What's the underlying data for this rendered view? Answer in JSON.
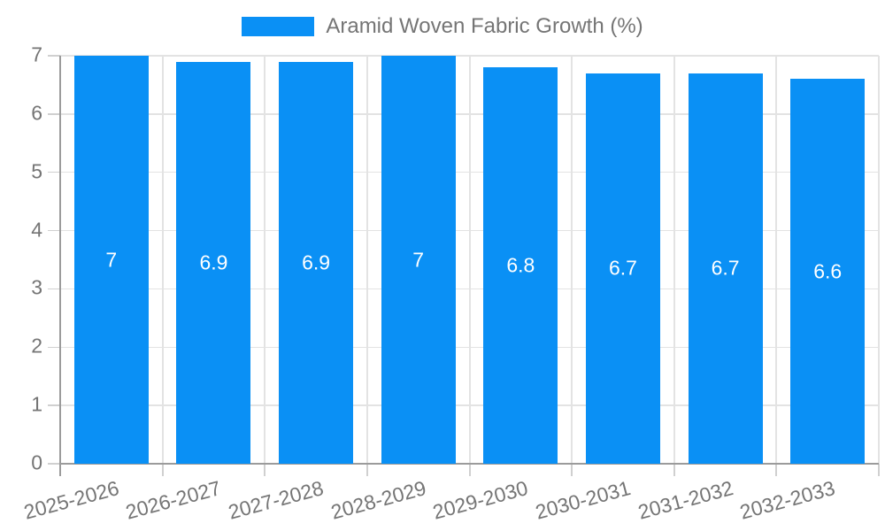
{
  "chart_data": {
    "type": "bar",
    "title": "",
    "series_name": "Aramid Woven Fabric Growth (%)",
    "categories": [
      "2025-2026",
      "2026-2027",
      "2027-2028",
      "2028-2029",
      "2029-2030",
      "2030-2031",
      "2031-2032",
      "2032-2033"
    ],
    "values": [
      7,
      6.9,
      6.9,
      7,
      6.8,
      6.7,
      6.7,
      6.6
    ],
    "value_labels": [
      "7",
      "6.9",
      "6.9",
      "7",
      "6.8",
      "6.7",
      "6.7",
      "6.6"
    ],
    "xlabel": "",
    "ylabel": "",
    "ylim": [
      0,
      7
    ],
    "yticks": [
      "0",
      "1",
      "2",
      "3",
      "4",
      "5",
      "6",
      "7"
    ],
    "grid": true,
    "legend_position": "top",
    "x_label_rotation_deg": -15,
    "colors": {
      "bar": "#0a90f5",
      "value_label": "#ffffff",
      "axis": "#9b9b9b",
      "gridline": "#e3e3e3",
      "tick_mark": "#d0d0d0",
      "text": "#757575",
      "background": "#ffffff"
    }
  }
}
